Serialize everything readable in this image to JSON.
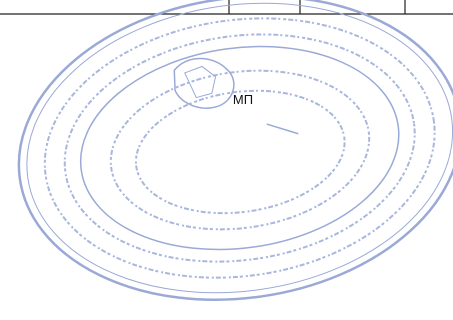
{
  "stamp": {
    "label": "МП"
  }
}
